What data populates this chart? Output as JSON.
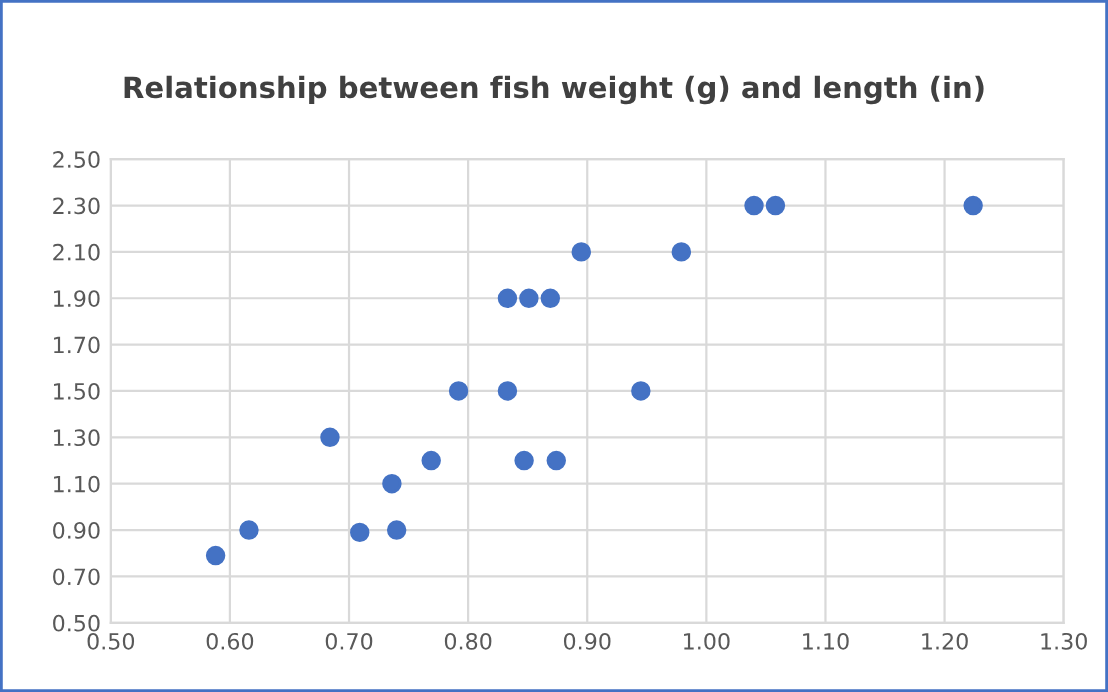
{
  "chart_data": {
    "type": "scatter",
    "title": "Relationship between fish weight (g) and length (in)",
    "series": [
      {
        "color": "#4472c4",
        "x": [
          0.588,
          0.616,
          0.684,
          0.709,
          0.736,
          0.74,
          0.769,
          0.792,
          0.833,
          0.833,
          0.847,
          0.851,
          0.869,
          0.874,
          0.895,
          0.945,
          0.979,
          1.04,
          1.058,
          1.224
        ],
        "values": [
          0.79,
          0.9,
          1.3,
          0.89,
          1.1,
          0.9,
          1.2,
          1.5,
          1.9,
          1.5,
          1.2,
          1.9,
          1.9,
          1.2,
          2.1,
          1.5,
          2.1,
          2.3,
          2.3,
          2.3
        ]
      }
    ],
    "xlim": [
      0.5,
      1.3
    ],
    "ylim": [
      0.5,
      2.5
    ],
    "xticks": [
      {
        "value": 0.5,
        "label": "0.50"
      },
      {
        "value": 0.6,
        "label": "0.60"
      },
      {
        "value": 0.7,
        "label": "0.70"
      },
      {
        "value": 0.8,
        "label": "0.80"
      },
      {
        "value": 0.9,
        "label": "0.90"
      },
      {
        "value": 1.0,
        "label": "1.00"
      },
      {
        "value": 1.1,
        "label": "1.10"
      },
      {
        "value": 1.2,
        "label": "1.20"
      },
      {
        "value": 1.3,
        "label": "1.30"
      }
    ],
    "yticks": [
      {
        "value": 0.5,
        "label": "0.50"
      },
      {
        "value": 0.7,
        "label": "0.70"
      },
      {
        "value": 0.9,
        "label": "0.90"
      },
      {
        "value": 1.1,
        "label": "1.10"
      },
      {
        "value": 1.3,
        "label": "1.30"
      },
      {
        "value": 1.5,
        "label": "1.50"
      },
      {
        "value": 1.7,
        "label": "1.70"
      },
      {
        "value": 1.9,
        "label": "1.90"
      },
      {
        "value": 2.1,
        "label": "2.10"
      },
      {
        "value": 2.3,
        "label": "2.30"
      },
      {
        "value": 2.5,
        "label": "2.50"
      }
    ],
    "grid": true,
    "marker": "circle",
    "legend": false
  }
}
